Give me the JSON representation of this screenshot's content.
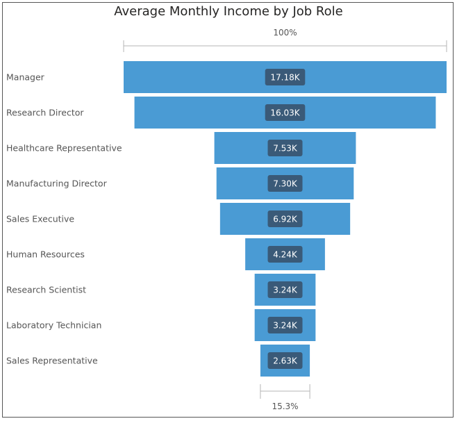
{
  "chart_data": {
    "type": "funnel",
    "title": "Average Monthly Income by Job Role",
    "categories": [
      "Manager",
      "Research Director",
      "Healthcare Representative",
      "Manufacturing Director",
      "Sales Executive",
      "Human Resources",
      "Research Scientist",
      "Laboratory Technician",
      "Sales Representative"
    ],
    "values": [
      17.18,
      16.03,
      7.53,
      7.3,
      6.92,
      4.24,
      3.24,
      3.24,
      2.63
    ],
    "value_labels": [
      "17.18K",
      "16.03K",
      "7.53K",
      "7.30K",
      "6.92K",
      "4.24K",
      "3.24K",
      "3.24K",
      "2.63K"
    ],
    "top_percent_label": "100%",
    "bottom_percent_label": "15.3%",
    "bar_color": "#4a9bd4",
    "label_box_color": "#3a5a78"
  }
}
